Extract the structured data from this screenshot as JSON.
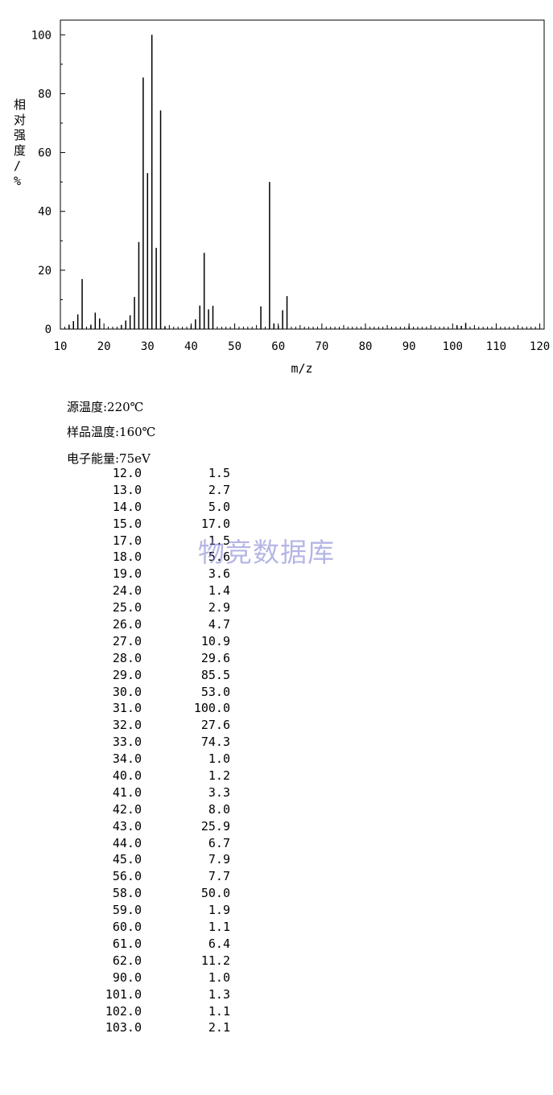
{
  "chart_data": {
    "type": "bar",
    "xlabel": "m/z",
    "ylabel": "相对强度/%",
    "xlim": [
      10,
      121
    ],
    "ylim": [
      0,
      105
    ],
    "xticks": [
      10,
      20,
      30,
      40,
      50,
      60,
      70,
      80,
      90,
      100,
      110,
      120
    ],
    "yticks": [
      0,
      20,
      40,
      60,
      80,
      100
    ],
    "peaks": [
      {
        "mz": 12,
        "intensity": 1.5
      },
      {
        "mz": 13,
        "intensity": 2.7
      },
      {
        "mz": 14,
        "intensity": 5.0
      },
      {
        "mz": 15,
        "intensity": 17.0
      },
      {
        "mz": 17,
        "intensity": 1.5
      },
      {
        "mz": 18,
        "intensity": 5.6
      },
      {
        "mz": 19,
        "intensity": 3.6
      },
      {
        "mz": 24,
        "intensity": 1.4
      },
      {
        "mz": 25,
        "intensity": 2.9
      },
      {
        "mz": 26,
        "intensity": 4.7
      },
      {
        "mz": 27,
        "intensity": 10.9
      },
      {
        "mz": 28,
        "intensity": 29.6
      },
      {
        "mz": 29,
        "intensity": 85.5
      },
      {
        "mz": 30,
        "intensity": 53.0
      },
      {
        "mz": 31,
        "intensity": 100.0
      },
      {
        "mz": 32,
        "intensity": 27.6
      },
      {
        "mz": 33,
        "intensity": 74.3
      },
      {
        "mz": 34,
        "intensity": 1.0
      },
      {
        "mz": 40,
        "intensity": 1.2
      },
      {
        "mz": 41,
        "intensity": 3.3
      },
      {
        "mz": 42,
        "intensity": 8.0
      },
      {
        "mz": 43,
        "intensity": 25.9
      },
      {
        "mz": 44,
        "intensity": 6.7
      },
      {
        "mz": 45,
        "intensity": 7.9
      },
      {
        "mz": 56,
        "intensity": 7.7
      },
      {
        "mz": 58,
        "intensity": 50.0
      },
      {
        "mz": 59,
        "intensity": 1.9
      },
      {
        "mz": 60,
        "intensity": 1.1
      },
      {
        "mz": 61,
        "intensity": 6.4
      },
      {
        "mz": 62,
        "intensity": 11.2
      },
      {
        "mz": 90,
        "intensity": 1.0
      },
      {
        "mz": 101,
        "intensity": 1.3
      },
      {
        "mz": 102,
        "intensity": 1.1
      },
      {
        "mz": 103,
        "intensity": 2.1
      }
    ]
  },
  "conditions": {
    "source_temp": "源温度:220℃",
    "sample_temp": "样品温度:160℃",
    "electron_energy": "电子能量:75eV"
  },
  "table": {
    "rows": [
      [
        "12.0",
        "1.5"
      ],
      [
        "13.0",
        "2.7"
      ],
      [
        "14.0",
        "5.0"
      ],
      [
        "15.0",
        "17.0"
      ],
      [
        "17.0",
        "1.5"
      ],
      [
        "18.0",
        "5.6"
      ],
      [
        "19.0",
        "3.6"
      ],
      [
        "24.0",
        "1.4"
      ],
      [
        "25.0",
        "2.9"
      ],
      [
        "26.0",
        "4.7"
      ],
      [
        "27.0",
        "10.9"
      ],
      [
        "28.0",
        "29.6"
      ],
      [
        "29.0",
        "85.5"
      ],
      [
        "30.0",
        "53.0"
      ],
      [
        "31.0",
        "100.0"
      ],
      [
        "32.0",
        "27.6"
      ],
      [
        "33.0",
        "74.3"
      ],
      [
        "34.0",
        "1.0"
      ],
      [
        "40.0",
        "1.2"
      ],
      [
        "41.0",
        "3.3"
      ],
      [
        "42.0",
        "8.0"
      ],
      [
        "43.0",
        "25.9"
      ],
      [
        "44.0",
        "6.7"
      ],
      [
        "45.0",
        "7.9"
      ],
      [
        "56.0",
        "7.7"
      ],
      [
        "58.0",
        "50.0"
      ],
      [
        "59.0",
        "1.9"
      ],
      [
        "60.0",
        "1.1"
      ],
      [
        "61.0",
        "6.4"
      ],
      [
        "62.0",
        "11.2"
      ],
      [
        "90.0",
        "1.0"
      ],
      [
        "101.0",
        "1.3"
      ],
      [
        "102.0",
        "1.1"
      ],
      [
        "103.0",
        "2.1"
      ]
    ]
  },
  "watermark": "物竞数据库"
}
